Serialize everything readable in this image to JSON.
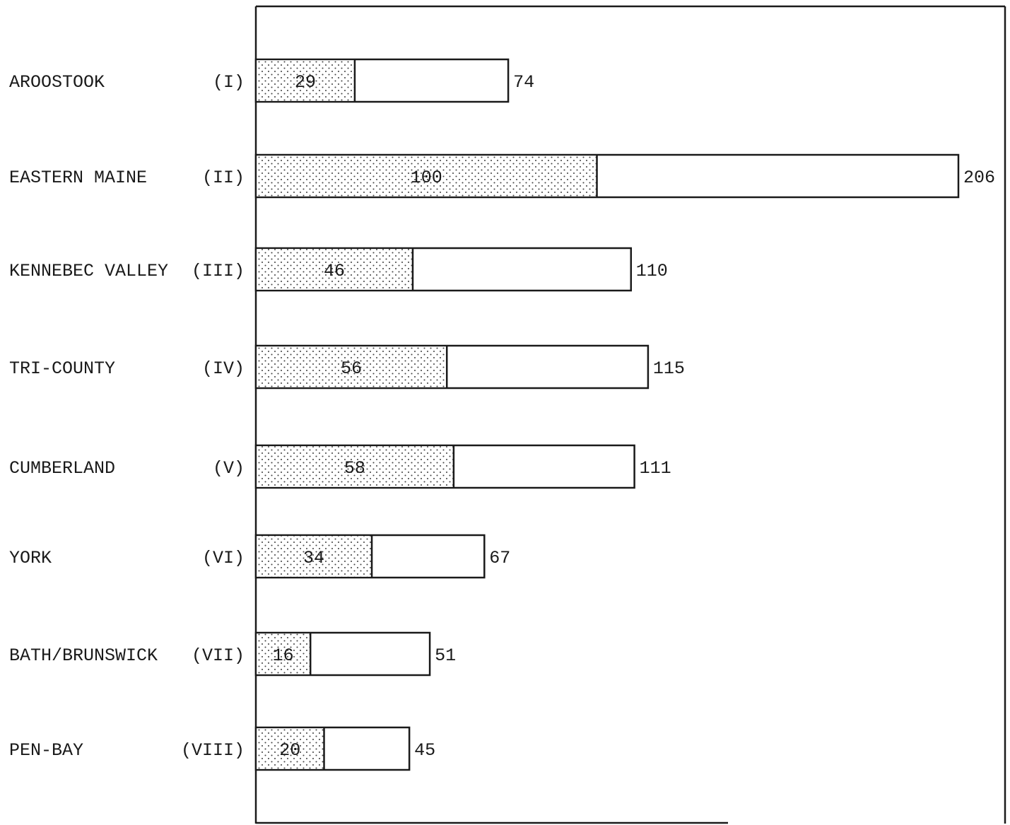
{
  "chart_data": {
    "type": "bar",
    "orientation": "horizontal",
    "stacked": true,
    "categories": [
      {
        "name": "AROOSTOOK",
        "code": "(I)"
      },
      {
        "name": "EASTERN MAINE",
        "code": "(II)"
      },
      {
        "name": "KENNEBEC VALLEY",
        "code": "(III)"
      },
      {
        "name": "TRI-COUNTY",
        "code": "(IV)"
      },
      {
        "name": "CUMBERLAND",
        "code": "(V)"
      },
      {
        "name": "YORK",
        "code": "(VI)"
      },
      {
        "name": "BATH/BRUNSWICK",
        "code": "(VII)"
      },
      {
        "name": "PEN-BAY",
        "code": "(VIII)"
      }
    ],
    "series": [
      {
        "fill": "stippled",
        "values": [
          29,
          100,
          46,
          56,
          58,
          34,
          16,
          20
        ]
      },
      {
        "fill": "open",
        "totals": [
          74,
          206,
          110,
          115,
          111,
          67,
          51,
          45
        ]
      }
    ],
    "xlim": [
      0,
      220
    ],
    "grid": false,
    "legend": "none",
    "colors": {
      "ink": "#1a1a1a",
      "stipple": "#444444",
      "paper": "#ffffff"
    }
  }
}
